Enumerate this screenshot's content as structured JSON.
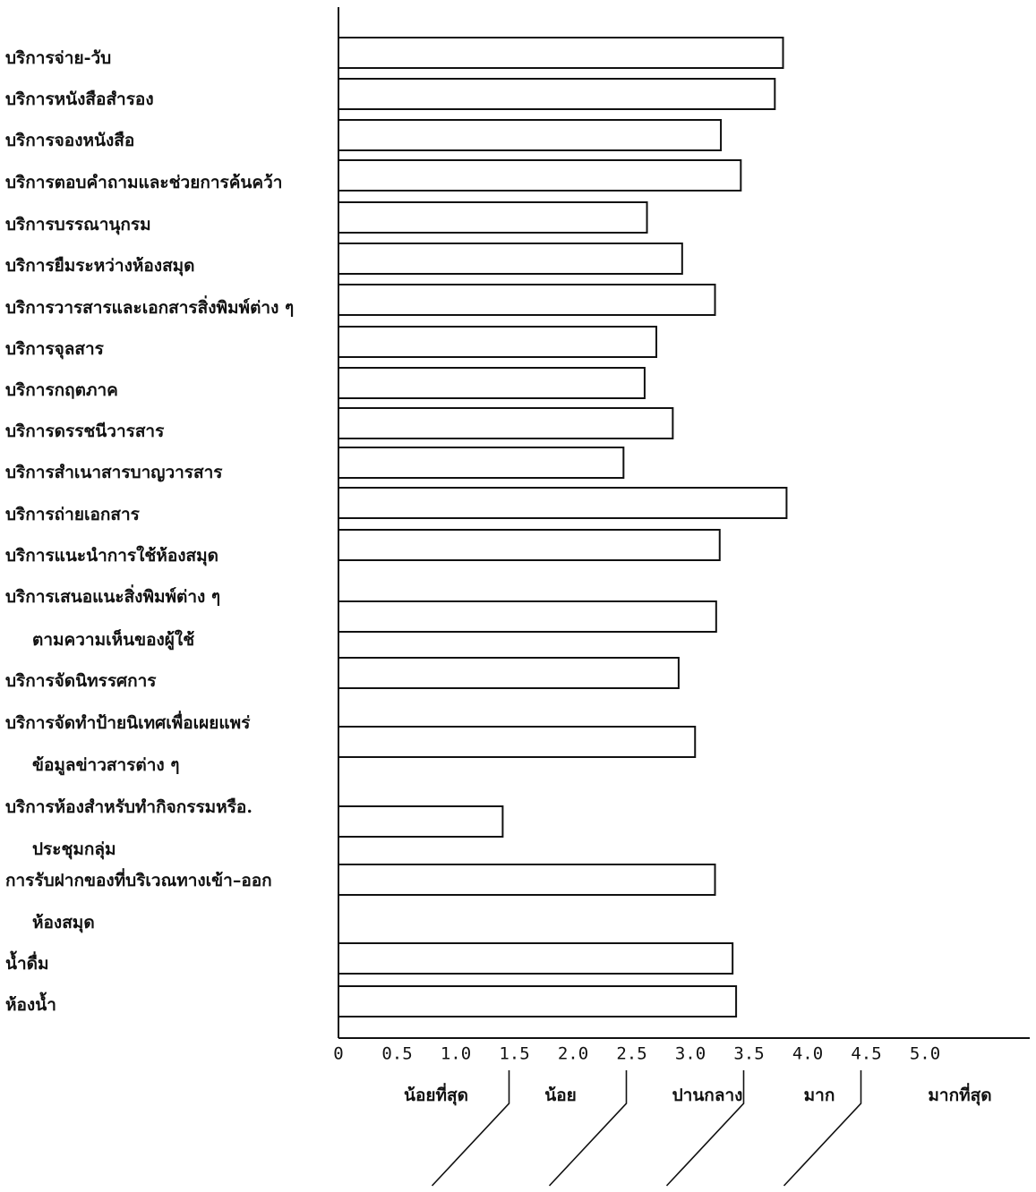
{
  "colors": {
    "bar_fill": "#ffffff",
    "bar_stroke": "#111111",
    "text": "#111111"
  },
  "chart_data": {
    "type": "bar",
    "orientation": "horizontal",
    "title": "",
    "xlabel": "",
    "ylabel": "",
    "xlim": [
      0,
      5.5
    ],
    "x_ticks": [
      "0",
      "0.5",
      "1.0",
      "1.5",
      "2.0",
      "2.5",
      "3.0",
      "3.5",
      "4.0",
      "4.5",
      "5.0"
    ],
    "grid": false,
    "categories": [
      [
        "บริการจ่าย-วับ"
      ],
      [
        "บริการหนังสือสำรอง"
      ],
      [
        "บริการจองหนังสือ"
      ],
      [
        "บริการตอบคำถามและช่วยการค้นคว้า"
      ],
      [
        "บริการบรรณานุกรม"
      ],
      [
        "บริการยืมระหว่างห้องสมุด"
      ],
      [
        "บริการวารสารและเอกสารสิ่งพิมพ์ต่าง ๆ"
      ],
      [
        "บริการจุลสาร"
      ],
      [
        "บริการกฤตภาค"
      ],
      [
        "บริการดรรชนีวารสาร"
      ],
      [
        "บริการสำเนาสารบาญวารสาร"
      ],
      [
        "บริการถ่ายเอกสาร"
      ],
      [
        "บริการแนะนำการใช้ห้องสมุด"
      ],
      [
        "บริการเสนอแนะสิ่งพิมพ์ต่าง ๆ",
        "ตามความเห็นของผู้ใช้"
      ],
      [
        "บริการจัดนิทรรศการ"
      ],
      [
        "บริการจัดทำป้ายนิเทศเพื่อเผยแพร่",
        "ข้อมูลข่าวสารต่าง ๆ"
      ],
      [
        "บริการห้องสำหรับทำกิจกรรมหรือ.",
        "ประชุมกลุ่ม"
      ],
      [
        "การรับฝากของที่บริเวณทางเข้า–ออก",
        "ห้องสมุด"
      ],
      [
        "น้ำดื่ม"
      ],
      [
        "ห้องน้ำ"
      ]
    ],
    "values": [
      3.79,
      3.72,
      3.26,
      3.43,
      2.63,
      2.93,
      3.21,
      2.71,
      2.61,
      2.85,
      2.43,
      3.82,
      3.25,
      3.22,
      2.9,
      3.04,
      1.4,
      3.21,
      3.36,
      3.39
    ],
    "levels": [
      {
        "label": "น้อยที่สุด",
        "range": [
          0,
          1.5
        ]
      },
      {
        "label": "น้อย",
        "range": [
          1.5,
          2.5
        ]
      },
      {
        "label": "ปานกลาง",
        "range": [
          2.5,
          3.5
        ]
      },
      {
        "label": "มาก",
        "range": [
          3.5,
          4.5
        ]
      },
      {
        "label": "มากที่สุด",
        "range": [
          4.5,
          5.0
        ]
      }
    ]
  }
}
